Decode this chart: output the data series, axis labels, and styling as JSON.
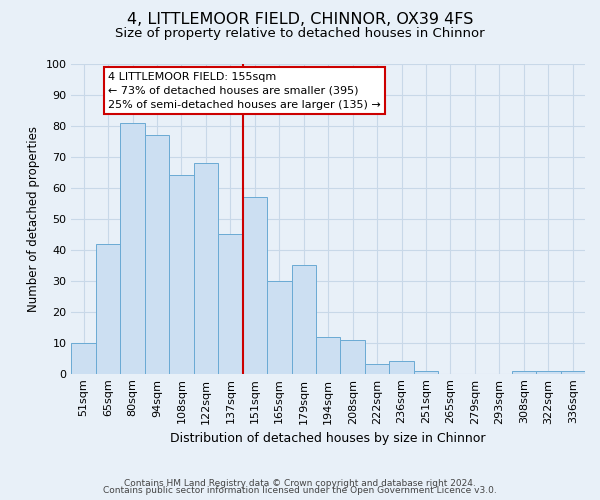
{
  "title": "4, LITTLEMOOR FIELD, CHINNOR, OX39 4FS",
  "subtitle": "Size of property relative to detached houses in Chinnor",
  "xlabel": "Distribution of detached houses by size in Chinnor",
  "ylabel": "Number of detached properties",
  "bin_labels": [
    "51sqm",
    "65sqm",
    "80sqm",
    "94sqm",
    "108sqm",
    "122sqm",
    "137sqm",
    "151sqm",
    "165sqm",
    "179sqm",
    "194sqm",
    "208sqm",
    "222sqm",
    "236sqm",
    "251sqm",
    "265sqm",
    "279sqm",
    "293sqm",
    "308sqm",
    "322sqm",
    "336sqm"
  ],
  "bar_values": [
    10,
    42,
    81,
    77,
    64,
    68,
    45,
    57,
    30,
    35,
    12,
    11,
    3,
    4,
    1,
    0,
    0,
    0,
    1,
    1,
    1
  ],
  "bar_color": "#ccdff2",
  "bar_edge_color": "#6aaad4",
  "vline_color": "#cc0000",
  "annotation_line1": "4 LITTLEMOOR FIELD: 155sqm",
  "annotation_line2": "← 73% of detached houses are smaller (395)",
  "annotation_line3": "25% of semi-detached houses are larger (135) →",
  "annotation_box_color": "#ffffff",
  "annotation_box_edge_color": "#cc0000",
  "ylim": [
    0,
    100
  ],
  "yticks": [
    0,
    10,
    20,
    30,
    40,
    50,
    60,
    70,
    80,
    90,
    100
  ],
  "grid_color": "#c8d8e8",
  "background_color": "#e8f0f8",
  "footer_line1": "Contains HM Land Registry data © Crown copyright and database right 2024.",
  "footer_line2": "Contains public sector information licensed under the Open Government Licence v3.0.",
  "title_fontsize": 11.5,
  "subtitle_fontsize": 9.5,
  "xlabel_fontsize": 9,
  "ylabel_fontsize": 8.5,
  "tick_fontsize": 8,
  "annotation_fontsize": 8,
  "footer_fontsize": 6.5
}
